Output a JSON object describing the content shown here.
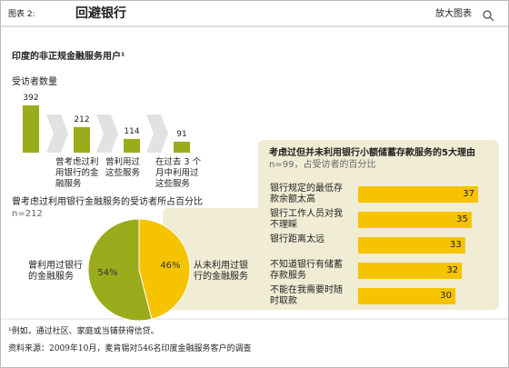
{
  "header": {
    "label": "图表 2:",
    "title": "回避银行",
    "button": "放大图表"
  },
  "section_title": "印度的非正规金融服务用户¹",
  "footnote": "¹例如，通过社区、家庭或当铺获得信贷。",
  "source": "资料来源：2009年10月，麦肯锡对546名印度金融服务客户的调查",
  "chart_data": [
    {
      "type": "bar",
      "title": "受访者数量",
      "categories": [
        null,
        "曾考虑过利用银行的金融服务",
        "曾利用过这些服务",
        "在过去 3 个月中利用过这些服务"
      ],
      "values": [
        392,
        212,
        114,
        91
      ],
      "color": "#9aab1c"
    },
    {
      "type": "pie",
      "title": "曾考虑过利用银行金融服务的受访者所占百分比",
      "subtitle": "n=212",
      "categories": [
        "曾利用过银行的金融服务",
        "从未利用过银行的金融服务"
      ],
      "values": [
        54,
        46
      ],
      "value_labels": [
        "54%",
        "46%"
      ],
      "colors": [
        "#9aab1c",
        "#f6c300"
      ]
    },
    {
      "type": "hbar",
      "title": "考虑过但并未利用银行小额储蓄存款服务的5大理由",
      "subtitle": "n=99，占受访者的百分比",
      "categories": [
        "银行规定的最低存款余额太高",
        "银行工作人员对我不理睬",
        "银行距离太远",
        "不知道银行有储蓄存款服务",
        "不能在我需要时随时取款"
      ],
      "values": [
        37,
        35,
        33,
        32,
        30
      ],
      "color": "#f6c300"
    }
  ]
}
